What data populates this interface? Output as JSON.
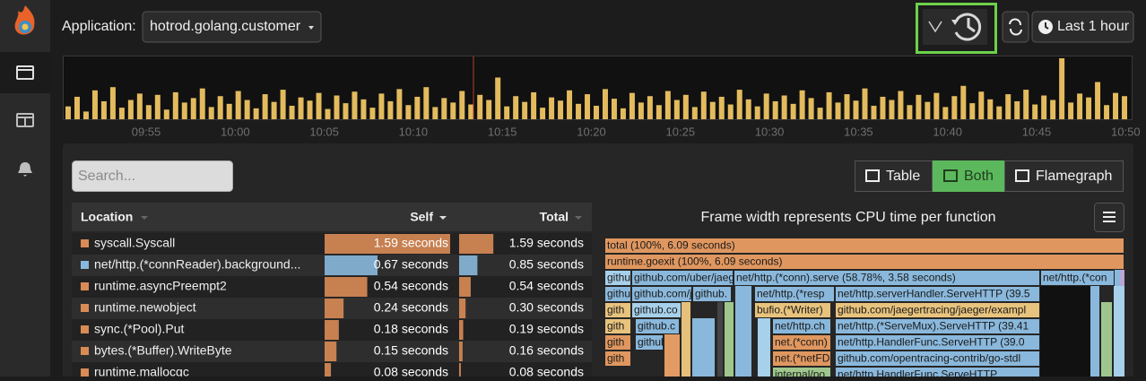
{
  "app": {
    "label": "Application:",
    "selected": "hotrod.golang.customer",
    "time_range": "Last 1 hour"
  },
  "timeline": {
    "ticks": [
      "09:55",
      "10:00",
      "10:05",
      "10:10",
      "10:15",
      "10:20",
      "10:25",
      "10:30",
      "10:35",
      "10:40",
      "10:45",
      "10:50"
    ],
    "values": [
      20,
      35,
      12,
      45,
      28,
      50,
      18,
      30,
      40,
      22,
      38,
      15,
      42,
      26,
      33,
      48,
      19,
      36,
      24,
      44,
      30,
      17,
      39,
      27,
      46,
      21,
      34,
      29,
      41,
      16,
      37,
      25,
      43,
      31,
      18,
      40,
      28,
      47,
      22,
      35,
      50,
      19,
      33,
      26,
      44,
      23,
      38,
      30,
      65,
      20,
      36,
      27,
      42,
      18,
      34,
      29,
      45,
      24,
      39,
      21,
      47,
      32,
      17,
      41,
      26,
      36,
      22,
      44,
      30,
      38,
      19,
      43,
      27,
      35,
      23,
      46,
      31,
      20,
      40,
      28,
      37,
      24,
      45,
      33,
      18,
      42,
      26,
      39,
      29,
      48,
      21,
      35,
      30,
      44,
      22,
      38,
      27,
      41,
      19,
      36,
      52,
      25,
      43,
      31,
      20,
      39,
      28,
      46,
      23,
      37,
      30,
      95,
      26,
      40,
      34,
      58,
      22,
      41,
      36
    ]
  },
  "toolbar": {
    "search_placeholder": "Search...",
    "views": [
      "Table",
      "Both",
      "Flamegraph"
    ],
    "active_view": "Both"
  },
  "table": {
    "columns": [
      "Location",
      "Self",
      "Total"
    ],
    "rows": [
      {
        "name": "syscall.Syscall",
        "color": "#d98b55",
        "self": {
          "value": 1.59,
          "label": "1.59 seconds"
        },
        "total": {
          "value": 1.59,
          "label": "1.59 seconds"
        }
      },
      {
        "name": "net/http.(*connReader).background...",
        "color": "#8ab8dc",
        "self": {
          "value": 0.67,
          "label": "0.67 seconds"
        },
        "total": {
          "value": 0.85,
          "label": "0.85 seconds"
        }
      },
      {
        "name": "runtime.asyncPreempt2",
        "color": "#d98b55",
        "self": {
          "value": 0.54,
          "label": "0.54 seconds"
        },
        "total": {
          "value": 0.54,
          "label": "0.54 seconds"
        }
      },
      {
        "name": "runtime.newobject",
        "color": "#d98b55",
        "self": {
          "value": 0.24,
          "label": "0.24 seconds"
        },
        "total": {
          "value": 0.3,
          "label": "0.30 seconds"
        }
      },
      {
        "name": "sync.(*Pool).Put",
        "color": "#d98b55",
        "self": {
          "value": 0.18,
          "label": "0.18 seconds"
        },
        "total": {
          "value": 0.19,
          "label": "0.19 seconds"
        }
      },
      {
        "name": "bytes.(*Buffer).WriteByte",
        "color": "#d98b55",
        "self": {
          "value": 0.15,
          "label": "0.15 seconds"
        },
        "total": {
          "value": 0.16,
          "label": "0.16 seconds"
        }
      },
      {
        "name": "runtime.mallocgc",
        "color": "#d98b55",
        "self": {
          "value": 0.08,
          "label": "0.08 seconds"
        },
        "total": {
          "value": 0.08,
          "label": "0.08 seconds"
        }
      }
    ]
  },
  "flamegraph": {
    "title": "Frame width represents CPU time per function",
    "frames": [
      "total (100%, 6.09 seconds)",
      "runtime.goexit (100%, 6.09 seconds)",
      "githu",
      "github.com/uber/jaeg",
      "net/http.(*conn).serve (58.78%, 3.58 seconds)",
      "net/http.(*con",
      "githu",
      "github.com/jaeg",
      "github.",
      "net/http.(*resp",
      "net/http.serverHandler.ServeHTTP (39.5",
      "github.co",
      "bufio.(*Writer)",
      "github.com/jaegertracing/jaeger/exampl",
      "gith",
      "github.c",
      "net/http.ch",
      "net/http.(*ServeMux).ServeHTTP (39.41",
      "gith",
      "github",
      "net.(*conn)",
      "net/http.HandlerFunc.ServeHTTP (39.0",
      "gith",
      "net.(*netFD",
      "github.com/opentracing-contrib/go-stdl",
      "gith",
      "internal/po",
      "net/http.HandlerFunc.ServeHTTP"
    ]
  }
}
